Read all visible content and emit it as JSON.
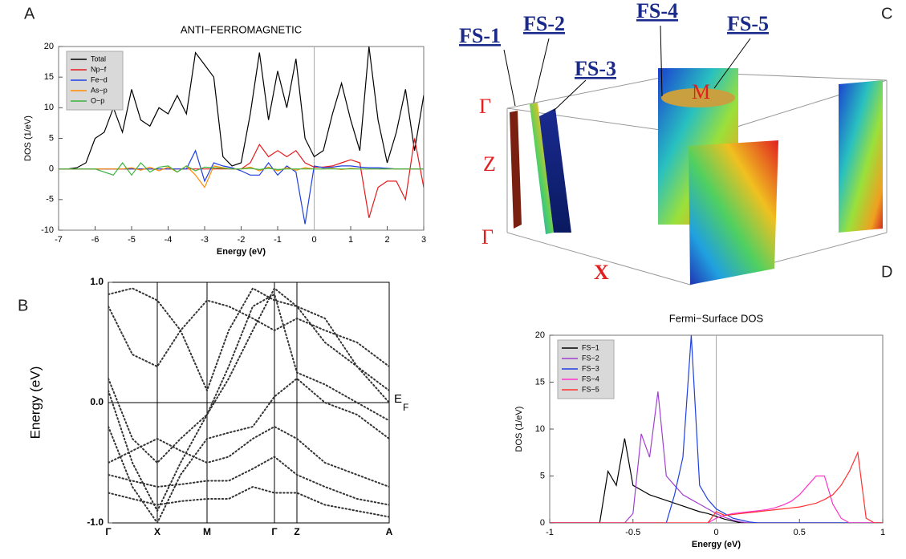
{
  "panels": [
    "A",
    "B",
    "C",
    "D"
  ],
  "fermi_surface": {
    "sheets": [
      "FS-1",
      "FS-2",
      "FS-3",
      "FS-4",
      "FS-5"
    ],
    "points": [
      "Γ",
      "Z",
      "Γ",
      "X",
      "M"
    ]
  },
  "chart_data": [
    {
      "type": "line",
      "title": "ANTI−FERROMAGNETIC",
      "x_label": "Energy  (eV)",
      "y_label": "DOS  (1/eV)",
      "x": [
        -7,
        -6.75,
        -6.5,
        -6.25,
        -6,
        -5.75,
        -5.5,
        -5.25,
        -5,
        -4.75,
        -4.5,
        -4.25,
        -4,
        -3.75,
        -3.5,
        -3.25,
        -3,
        -2.75,
        -2.5,
        -2.25,
        -2,
        -1.75,
        -1.5,
        -1.25,
        -1,
        -0.75,
        -0.5,
        -0.25,
        0,
        0.25,
        0.5,
        0.75,
        1,
        1.25,
        1.5,
        1.75,
        2,
        2.25,
        2.5,
        2.75,
        3
      ],
      "series": [
        {
          "name": "Total",
          "color": "#000000",
          "values": [
            0,
            0,
            0.2,
            1,
            5,
            6,
            10,
            6,
            13,
            8,
            7,
            10,
            9,
            12,
            9,
            19,
            17,
            15,
            2,
            0.5,
            1,
            9,
            19,
            8,
            16,
            10,
            18,
            5,
            2,
            3,
            9,
            14,
            8,
            3,
            20,
            8,
            1,
            6,
            13,
            3,
            12
          ]
        },
        {
          "name": "Np−f",
          "color": "#e41a1c",
          "values": [
            0,
            0,
            0,
            0,
            0,
            0,
            0,
            0,
            0,
            0,
            0,
            0,
            0,
            0,
            0,
            0,
            0,
            0,
            0,
            0,
            0,
            1,
            4,
            2,
            3,
            2,
            3,
            1,
            0.3,
            0.3,
            0.5,
            1,
            1.5,
            1,
            -8,
            -3,
            -2,
            -2,
            -5,
            5,
            -3
          ]
        },
        {
          "name": "Fe−d",
          "color": "#1f3fe0",
          "values": [
            0,
            0,
            0,
            0,
            0,
            0,
            0,
            0,
            0,
            0,
            0,
            0,
            0,
            0,
            0,
            3,
            -2,
            1,
            0.5,
            0.2,
            -0.3,
            -1,
            -1,
            1,
            -1,
            0.5,
            -0.5,
            -9,
            0.5,
            0.2,
            0.3,
            0.5,
            0.5,
            0.3,
            0.2,
            0.2,
            0.1,
            0,
            0,
            0,
            0
          ]
        },
        {
          "name": "As−p",
          "color": "#ff8c00",
          "values": [
            0,
            0,
            0,
            0,
            0,
            0,
            0,
            0,
            0.2,
            -0.2,
            0.3,
            -0.3,
            0.3,
            -0.5,
            0.5,
            -1,
            -3,
            0.5,
            0.2,
            0,
            0,
            0.3,
            -0.3,
            0.3,
            -0.3,
            0.2,
            -0.2,
            0.2,
            0,
            0,
            0.1,
            -0.1,
            0.1,
            0,
            0,
            0,
            0,
            0,
            0,
            0,
            0
          ]
        },
        {
          "name": "O−p",
          "color": "#3cb33c",
          "values": [
            0,
            0,
            0,
            0,
            0,
            -0.5,
            -1,
            1,
            -1,
            1,
            -0.5,
            0.3,
            0.5,
            -0.5,
            0.5,
            -0.3,
            0.3,
            0.2,
            0.1,
            0,
            0,
            0.1,
            -0.1,
            0.1,
            -0.1,
            0,
            0,
            0,
            0,
            0,
            0,
            0,
            0,
            0,
            0,
            0,
            0,
            0,
            0,
            0,
            0
          ]
        }
      ],
      "xlim": [
        -7,
        3
      ],
      "ylim": [
        -10,
        20
      ],
      "xticks": [
        -7,
        -6,
        -5,
        -4,
        -3,
        -2,
        -1,
        0,
        1,
        2,
        3
      ],
      "yticks": [
        -10,
        -5,
        0,
        5,
        10,
        15,
        20
      ],
      "line_style": "solid",
      "legend": "upper left"
    },
    {
      "type": "line",
      "y_label": "Energy (eV)",
      "annotation": "E",
      "annotation_subscript": "F",
      "x": [
        0,
        0.3,
        0.61,
        0.9,
        1.23,
        1.5,
        1.8,
        2.07,
        2.35,
        2.7,
        3.1,
        3.5
      ],
      "series": [
        {
          "color": "#333333",
          "values": [
            0.2,
            -0.3,
            -0.5,
            -0.3,
            -0.1,
            0.2,
            0.6,
            0.95,
            0.8,
            0.5,
            0.3,
            0.1
          ]
        },
        {
          "color": "#333333",
          "values": [
            0.1,
            -0.5,
            -0.9,
            -0.5,
            -0.1,
            0.3,
            0.8,
            0.9,
            0.25,
            0.15,
            0,
            -0.15
          ]
        },
        {
          "color": "#333333",
          "values": [
            -0.2,
            -0.7,
            -1,
            -0.6,
            -0.3,
            -0.25,
            -0.2,
            0.05,
            0.2,
            0,
            -0.1,
            -0.3
          ]
        },
        {
          "color": "#333333",
          "values": [
            -0.5,
            -0.4,
            -0.3,
            -0.4,
            -0.5,
            -0.45,
            -0.3,
            -0.2,
            -0.3,
            -0.5,
            -0.6,
            -0.7
          ]
        },
        {
          "color": "#333333",
          "values": [
            -0.6,
            -0.65,
            -0.7,
            -0.68,
            -0.65,
            -0.65,
            -0.55,
            -0.45,
            -0.6,
            -0.7,
            -0.8,
            -0.85
          ]
        },
        {
          "color": "#333333",
          "values": [
            -0.75,
            -0.8,
            -0.85,
            -0.82,
            -0.8,
            -0.8,
            -0.7,
            -0.75,
            -0.75,
            -0.85,
            -0.9,
            -0.95
          ]
        },
        {
          "color": "#333333",
          "values": [
            0.9,
            0.95,
            0.85,
            0.6,
            0.1,
            0.6,
            0.95,
            0.85,
            0.8,
            0.7,
            0.3,
            0
          ]
        },
        {
          "color": "#333333",
          "values": [
            0.8,
            0.4,
            0.3,
            0.6,
            0.85,
            0.8,
            0.7,
            0.6,
            0.7,
            0.6,
            0.5,
            0.3
          ]
        }
      ],
      "xlim": [
        0,
        3.5
      ],
      "ylim": [
        -1,
        1
      ],
      "xticks": [
        {
          "value": 0,
          "label": "Γ"
        },
        {
          "value": 0.61,
          "label": "X"
        },
        {
          "value": 1.23,
          "label": "M"
        },
        {
          "value": 2.07,
          "label": "Γ"
        },
        {
          "value": 2.35,
          "label": "Z"
        },
        {
          "value": 3.5,
          "label": "A"
        }
      ],
      "yticks": [
        {
          "value": -1,
          "label": "-1.0"
        },
        {
          "value": 0,
          "label": "0.0"
        },
        {
          "value": 1,
          "label": "1.0"
        }
      ],
      "line_style": "dotted",
      "x_grid": true
    },
    {
      "type": "line",
      "title": "Fermi−Surface DOS",
      "x_label": "Energy  (eV)",
      "y_label": "DOS  (1/eV)",
      "x": [
        -1,
        -0.95,
        -0.9,
        -0.85,
        -0.8,
        -0.75,
        -0.7,
        -0.65,
        -0.6,
        -0.55,
        -0.5,
        -0.45,
        -0.4,
        -0.35,
        -0.3,
        -0.25,
        -0.2,
        -0.15,
        -0.1,
        -0.05,
        0,
        0.05,
        0.1,
        0.15,
        0.2,
        0.25,
        0.3,
        0.35,
        0.4,
        0.45,
        0.5,
        0.55,
        0.6,
        0.65,
        0.7,
        0.75,
        0.8,
        0.85,
        0.9,
        0.95,
        1
      ],
      "series": [
        {
          "name": "FS−1",
          "color": "#000000",
          "values": [
            0,
            0,
            0,
            0,
            0,
            0,
            0,
            5.5,
            4,
            9,
            4,
            3.5,
            3,
            2.7,
            2.4,
            2.1,
            1.8,
            1.5,
            1.2,
            1,
            0.7,
            0.4,
            0.2,
            0,
            0,
            0,
            0,
            0,
            0,
            0,
            0,
            0,
            0,
            0,
            0,
            0,
            0,
            0,
            0,
            0,
            0
          ]
        },
        {
          "name": "FS−2",
          "color": "#a040d0",
          "values": [
            0,
            0,
            0,
            0,
            0,
            0,
            0,
            0,
            0,
            0,
            1,
            9.5,
            7,
            14,
            5,
            4,
            3,
            2.5,
            2,
            1.5,
            1,
            0.6,
            0.3,
            0.1,
            0,
            0,
            0,
            0,
            0,
            0,
            0,
            0,
            0,
            0,
            0,
            0,
            0,
            0,
            0,
            0,
            0
          ]
        },
        {
          "name": "FS−3",
          "color": "#1f3fe0",
          "values": [
            0,
            0,
            0,
            0,
            0,
            0,
            0,
            0,
            0,
            0,
            0,
            0,
            0,
            0,
            0,
            3,
            7,
            20,
            4,
            2.5,
            1.5,
            1,
            0.5,
            0.3,
            0.1,
            0,
            0,
            0,
            0,
            0,
            0,
            0,
            0,
            0,
            0,
            0,
            0,
            0,
            0,
            0,
            0
          ]
        },
        {
          "name": "FS−4",
          "color": "#ff33cc",
          "values": [
            0,
            0,
            0,
            0,
            0,
            0,
            0,
            0,
            0,
            0,
            0,
            0,
            0,
            0,
            0,
            0,
            0,
            0,
            0,
            0,
            0.5,
            0.8,
            1,
            1.1,
            1.2,
            1.3,
            1.4,
            1.6,
            1.9,
            2.3,
            3,
            4,
            5,
            5,
            2,
            0.5,
            0,
            0,
            0,
            0,
            0
          ]
        },
        {
          "name": "FS−5",
          "color": "#ff3030",
          "values": [
            0,
            0,
            0,
            0,
            0,
            0,
            0,
            0,
            0,
            0,
            0,
            0,
            0,
            0,
            0,
            0,
            0,
            0,
            0,
            0,
            1.2,
            0.8,
            0.9,
            1,
            1.1,
            1.2,
            1.3,
            1.4,
            1.5,
            1.6,
            1.7,
            1.9,
            2.1,
            2.5,
            3,
            4,
            5.5,
            7.5,
            0.5,
            0,
            0
          ]
        }
      ],
      "xlim": [
        -1,
        1
      ],
      "ylim": [
        0,
        20
      ],
      "xticks": [
        -1,
        -0.5,
        0,
        0.5,
        1
      ],
      "yticks": [
        0,
        5,
        10,
        15,
        20
      ],
      "line_style": "solid",
      "legend": "upper left"
    }
  ]
}
